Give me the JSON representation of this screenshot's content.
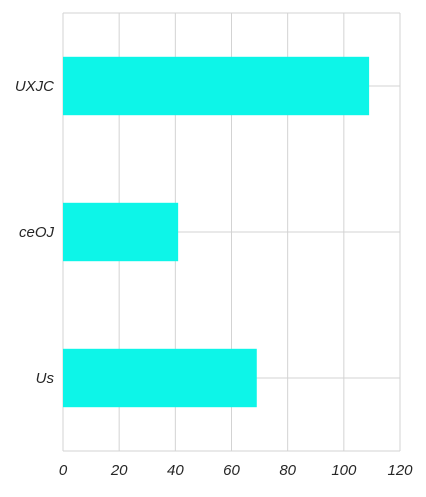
{
  "chart_data": {
    "type": "bar",
    "orientation": "horizontal",
    "categories": [
      "UXJC",
      "ceOJ",
      "Us"
    ],
    "values": [
      109,
      41,
      69
    ],
    "title": "",
    "xlabel": "",
    "ylabel": "",
    "xlim": [
      0,
      120
    ],
    "xticks": [
      0,
      20,
      40,
      60,
      80,
      100,
      120
    ],
    "grid": true,
    "legend": "none",
    "colors": {
      "bar": "#0df5e8",
      "grid": "#d3d3d3",
      "text": "#262626"
    }
  }
}
